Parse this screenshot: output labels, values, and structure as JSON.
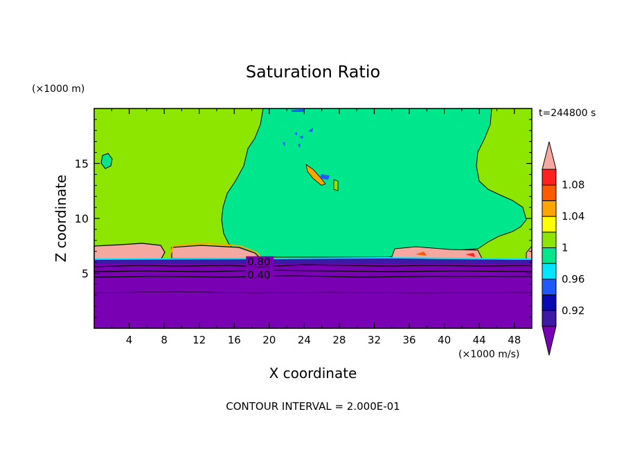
{
  "chart_data": {
    "type": "heatmap",
    "title": "Saturation Ratio",
    "xlabel": "X coordinate",
    "ylabel": "Z coordinate",
    "x_unit": "(×1000 m/s)",
    "y_unit": "(×1000 m)",
    "time_label": "t=244800 s",
    "footer": "CONTOUR INTERVAL = 2.000E-01",
    "xlim": [
      0,
      50
    ],
    "ylim": [
      0,
      20
    ],
    "x_ticks": [
      4,
      8,
      12,
      16,
      20,
      24,
      28,
      32,
      36,
      40,
      44,
      48
    ],
    "y_ticks": [
      5,
      10,
      15
    ],
    "contour_labels": [
      {
        "text": "0.80",
        "x": 17.5,
        "z": 5.8
      },
      {
        "text": "0.40",
        "x": 17.5,
        "z": 4.6
      }
    ],
    "colorbar": {
      "levels": [
        0.9,
        0.92,
        0.94,
        0.96,
        0.98,
        1.0,
        1.02,
        1.04,
        1.06,
        1.08,
        1.1
      ],
      "labels": [
        "0.92",
        "0.96",
        "1",
        "1.04",
        "1.08"
      ],
      "colors": [
        "#7a00b4",
        "#3c1aa6",
        "#0a0ab2",
        "#1e5aff",
        "#00e6ff",
        "#00e68c",
        "#8ce600",
        "#ffff00",
        "#ffa500",
        "#ff5a00",
        "#ff2020",
        "#f4a8a0"
      ]
    }
  }
}
